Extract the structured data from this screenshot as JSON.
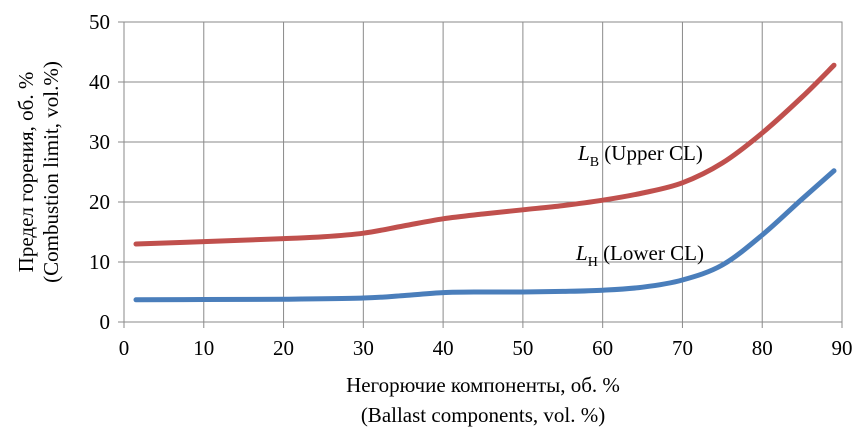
{
  "chart_data": {
    "type": "line",
    "xlabel": [
      "Негорючие компоненты, об. %",
      "(Ballast components, vol. %)"
    ],
    "ylabel": [
      "Предел  горения, об. %",
      "(Combustion limit, vol.%)"
    ],
    "xlim": [
      0,
      90
    ],
    "ylim": [
      0,
      50
    ],
    "x_ticks": [
      0,
      10,
      20,
      30,
      40,
      50,
      60,
      70,
      80,
      90
    ],
    "y_ticks": [
      0,
      10,
      20,
      30,
      40,
      50
    ],
    "grid": true,
    "series": [
      {
        "color": "#c0504d",
        "label": {
          "main": "L",
          "sub": "В",
          "text": " (Upper CL)"
        },
        "x": [
          1.5,
          10,
          20,
          25,
          30,
          35,
          40,
          45,
          50,
          55,
          60,
          65,
          70,
          75,
          80,
          85,
          89
        ],
        "y": [
          13,
          13.4,
          13.9,
          14.2,
          14.8,
          16,
          17.2,
          18,
          18.7,
          19.4,
          20.3,
          21.5,
          23.2,
          26.5,
          31.5,
          37.5,
          42.8
        ]
      },
      {
        "color": "#4a7ebb",
        "label": {
          "main": "L",
          "sub": "Н",
          "text": " (Lower CL)"
        },
        "x": [
          1.5,
          10,
          20,
          30,
          35,
          40,
          45,
          50,
          55,
          60,
          65,
          70,
          75,
          80,
          85,
          89
        ],
        "y": [
          3.7,
          3.75,
          3.8,
          4,
          4.4,
          4.9,
          5,
          5,
          5.1,
          5.3,
          5.8,
          7,
          9.5,
          14.5,
          20.5,
          25.2
        ]
      }
    ]
  }
}
